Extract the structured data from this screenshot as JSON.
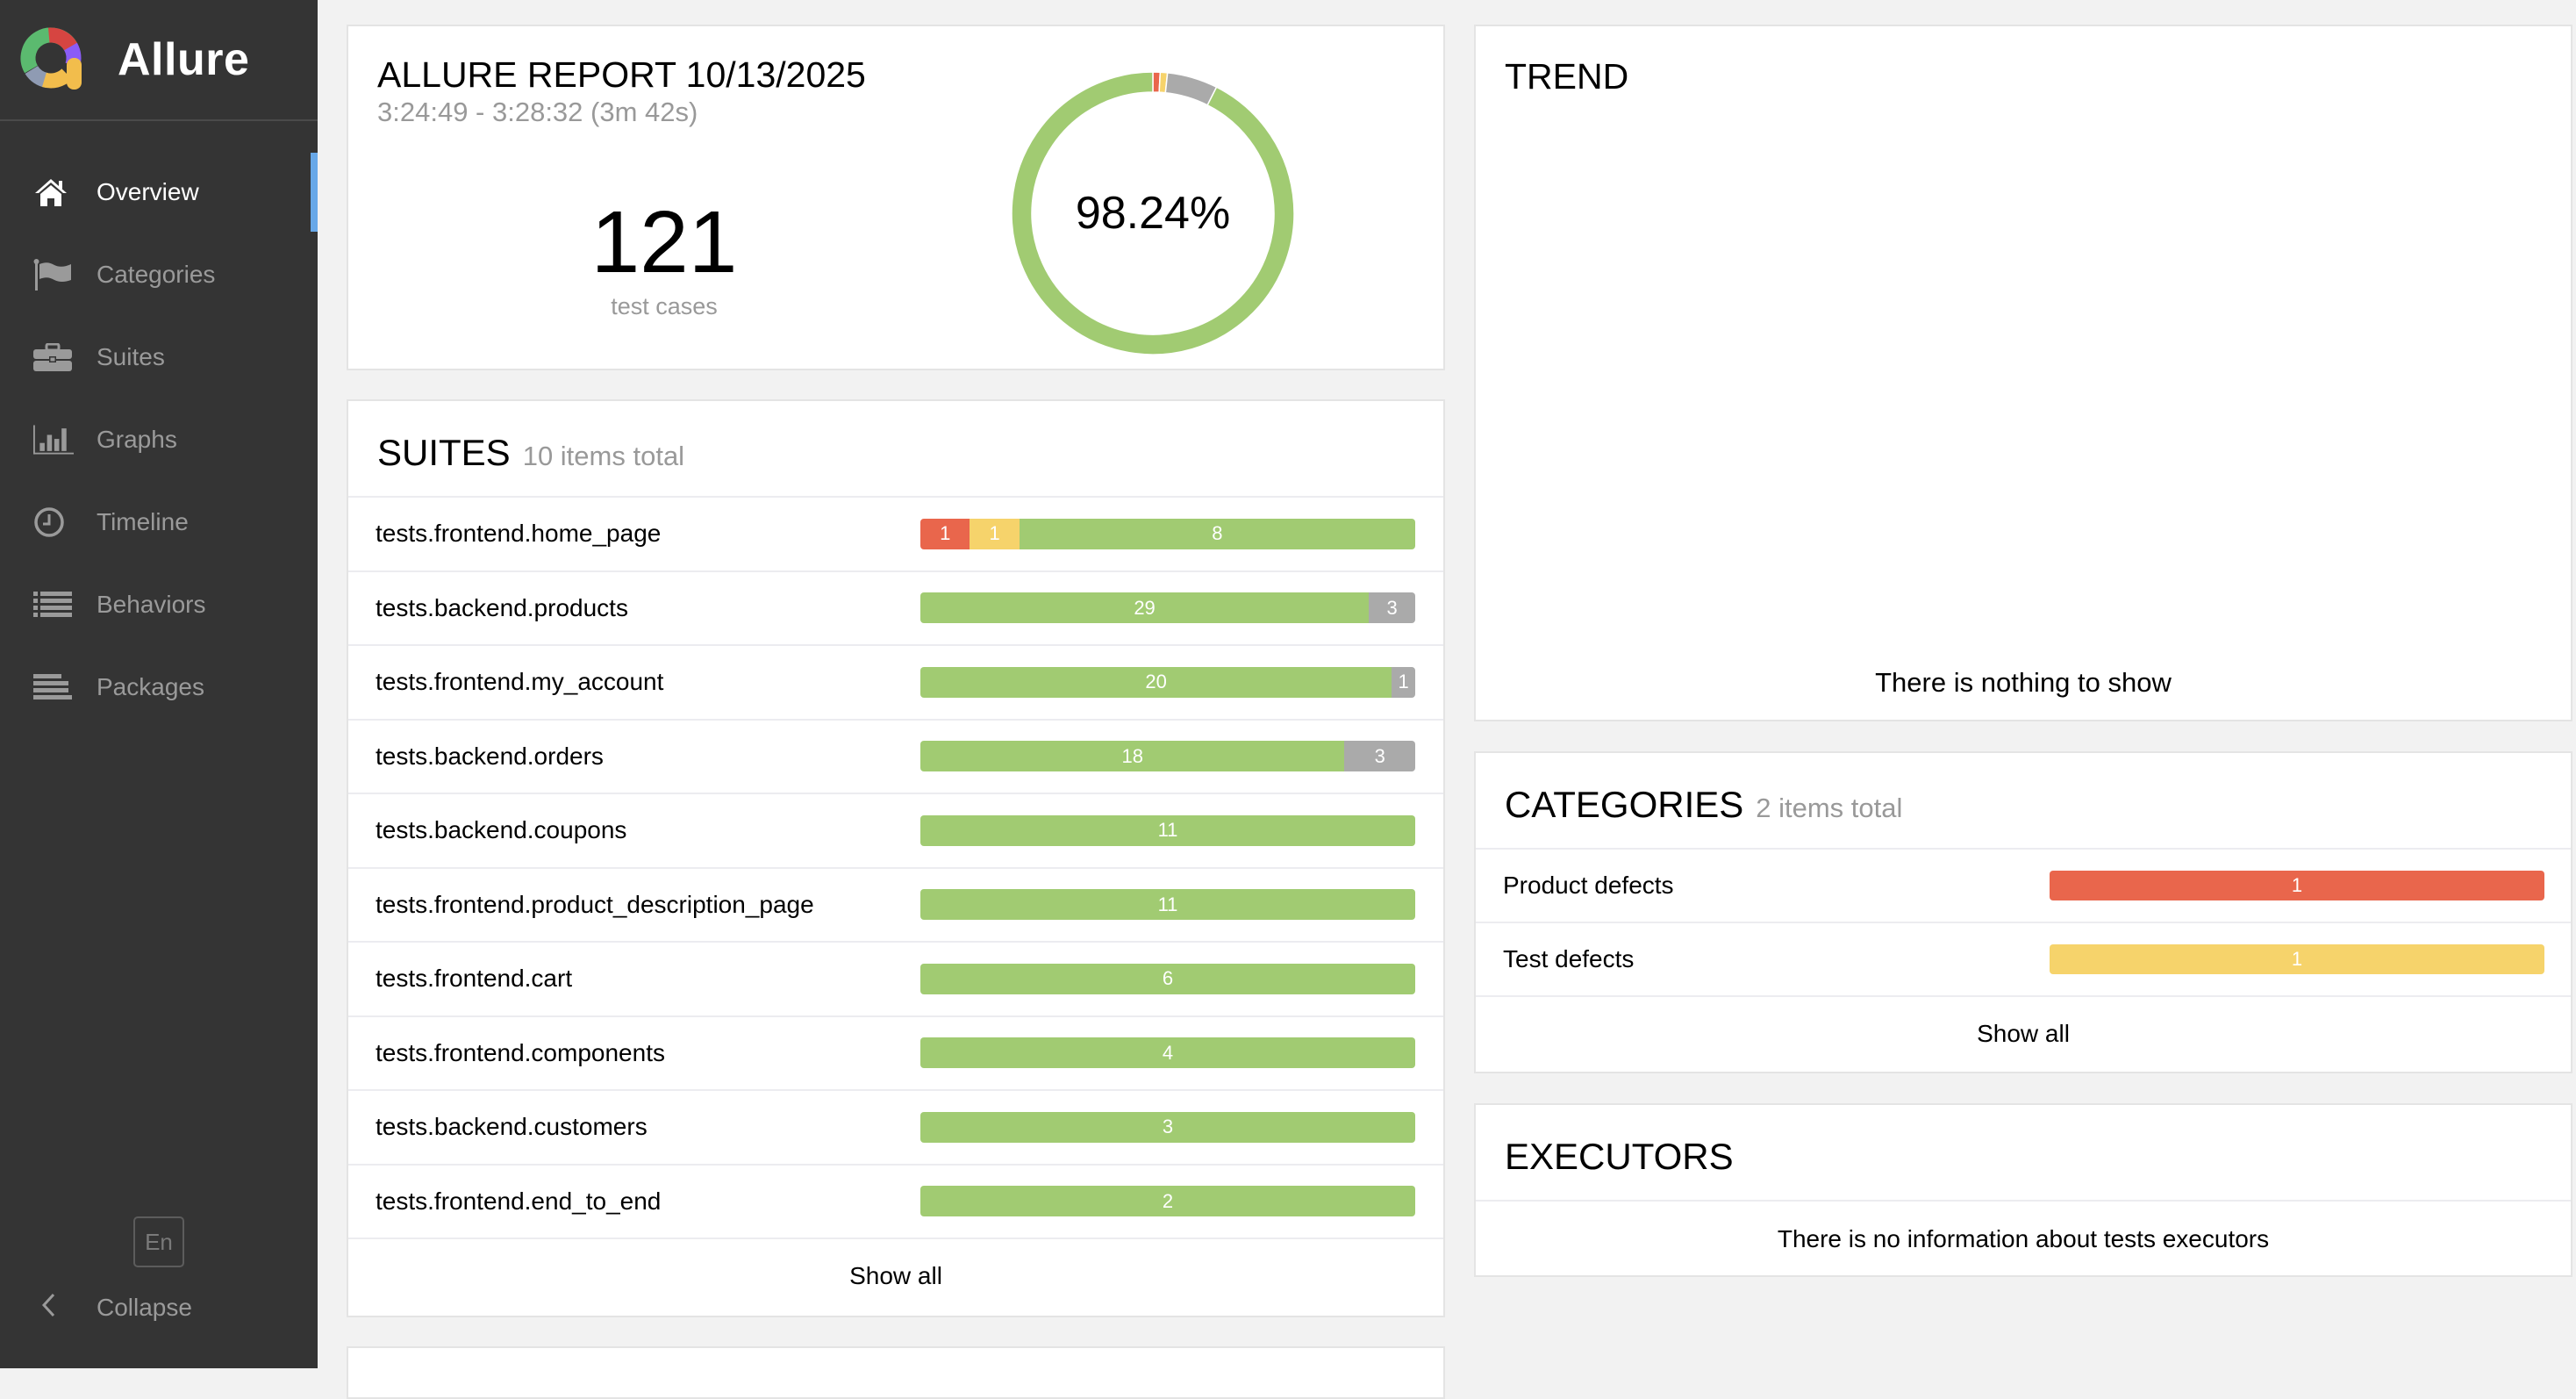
{
  "sidebar": {
    "brand": "Allure",
    "items": [
      {
        "label": "Overview",
        "icon": "home-icon",
        "active": true
      },
      {
        "label": "Categories",
        "icon": "flag-icon",
        "active": false
      },
      {
        "label": "Suites",
        "icon": "briefcase-icon",
        "active": false
      },
      {
        "label": "Graphs",
        "icon": "bar-chart-icon",
        "active": false
      },
      {
        "label": "Timeline",
        "icon": "clock-icon",
        "active": false
      },
      {
        "label": "Behaviors",
        "icon": "list-icon",
        "active": false
      },
      {
        "label": "Packages",
        "icon": "align-left-icon",
        "active": false
      }
    ],
    "language": "En",
    "collapse_label": "Collapse"
  },
  "colors": {
    "passed": "#a1cb72",
    "failed": "#e9664c",
    "broken": "#f6d36b",
    "skipped": "#aaaaaa",
    "sidebar_bg": "#343434",
    "active_marker": "#68a8e8"
  },
  "report": {
    "title": "ALLURE REPORT 10/13/2025",
    "time_range": "3:24:49 - 3:28:32 (3m 42s)",
    "test_count": "121",
    "test_count_label": "test cases",
    "success_rate": "98.24%"
  },
  "chart_data": {
    "type": "pie",
    "title": "Success rate",
    "center_label": "98.24%",
    "categories": [
      "failed",
      "broken",
      "skipped",
      "passed"
    ],
    "values": [
      1,
      1,
      7,
      112
    ],
    "colors": [
      "#e9664c",
      "#f6d36b",
      "#aaaaaa",
      "#a1cb72"
    ]
  },
  "suites": {
    "title": "SUITES",
    "subtitle": "10 items total",
    "show_all": "Show all",
    "rows": [
      {
        "name": "tests.frontend.home_page",
        "segments": [
          {
            "status": "failed",
            "count": "1"
          },
          {
            "status": "broken",
            "count": "1"
          },
          {
            "status": "passed",
            "count": "8"
          }
        ]
      },
      {
        "name": "tests.backend.products",
        "segments": [
          {
            "status": "passed",
            "count": "29"
          },
          {
            "status": "skipped",
            "count": "3"
          }
        ]
      },
      {
        "name": "tests.frontend.my_account",
        "segments": [
          {
            "status": "passed",
            "count": "20"
          },
          {
            "status": "skipped",
            "count": "1"
          }
        ]
      },
      {
        "name": "tests.backend.orders",
        "segments": [
          {
            "status": "passed",
            "count": "18"
          },
          {
            "status": "skipped",
            "count": "3"
          }
        ]
      },
      {
        "name": "tests.backend.coupons",
        "segments": [
          {
            "status": "passed",
            "count": "11"
          }
        ]
      },
      {
        "name": "tests.frontend.product_description_page",
        "segments": [
          {
            "status": "passed",
            "count": "11"
          }
        ]
      },
      {
        "name": "tests.frontend.cart",
        "segments": [
          {
            "status": "passed",
            "count": "6"
          }
        ]
      },
      {
        "name": "tests.frontend.components",
        "segments": [
          {
            "status": "passed",
            "count": "4"
          }
        ]
      },
      {
        "name": "tests.backend.customers",
        "segments": [
          {
            "status": "passed",
            "count": "3"
          }
        ]
      },
      {
        "name": "tests.frontend.end_to_end",
        "segments": [
          {
            "status": "passed",
            "count": "2"
          }
        ]
      }
    ]
  },
  "trend": {
    "title": "TREND",
    "empty_text": "There is nothing to show"
  },
  "categories": {
    "title": "CATEGORIES",
    "subtitle": "2 items total",
    "show_all": "Show all",
    "rows": [
      {
        "name": "Product defects",
        "status": "failed",
        "count": "1"
      },
      {
        "name": "Test defects",
        "status": "broken",
        "count": "1"
      }
    ]
  },
  "executors": {
    "title": "EXECUTORS",
    "empty_text": "There is no information about tests executors"
  }
}
